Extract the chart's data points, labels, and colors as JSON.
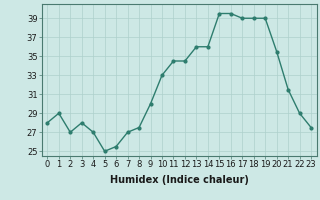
{
  "x": [
    0,
    1,
    2,
    3,
    4,
    5,
    6,
    7,
    8,
    9,
    10,
    11,
    12,
    13,
    14,
    15,
    16,
    17,
    18,
    19,
    20,
    21,
    22,
    23
  ],
  "y": [
    28,
    29,
    27,
    28,
    27,
    25,
    25.5,
    27,
    27.5,
    30,
    33,
    34.5,
    34.5,
    36,
    36,
    39.5,
    39.5,
    39,
    39,
    39,
    35.5,
    31.5,
    29,
    27.5
  ],
  "line_color": "#2e7d6e",
  "marker": "o",
  "markersize": 2.0,
  "linewidth": 1.0,
  "bg_color": "#cde8e5",
  "grid_color": "#aed0cc",
  "xlabel": "Humidex (Indice chaleur)",
  "xlabel_fontsize": 7,
  "ytick_labels": [
    25,
    27,
    29,
    31,
    33,
    35,
    37,
    39
  ],
  "xtick_labels": [
    0,
    1,
    2,
    3,
    4,
    5,
    6,
    7,
    8,
    9,
    10,
    11,
    12,
    13,
    14,
    15,
    16,
    17,
    18,
    19,
    20,
    21,
    22,
    23
  ],
  "ylim": [
    24.5,
    40.5
  ],
  "xlim": [
    -0.5,
    23.5
  ],
  "tick_fontsize": 6,
  "title": ""
}
